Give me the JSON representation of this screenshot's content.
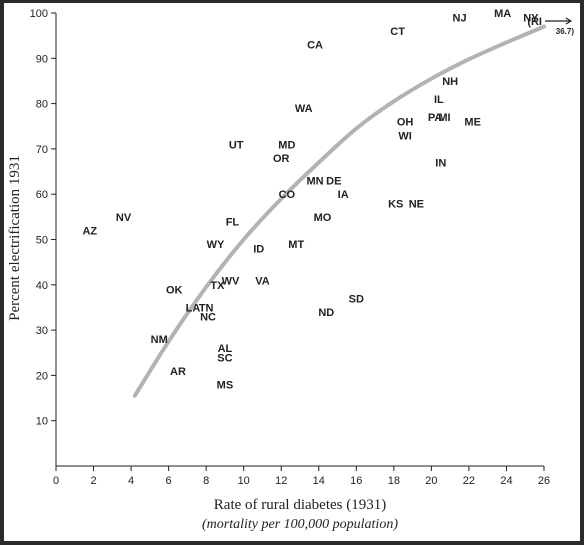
{
  "chart_data": {
    "type": "scatter",
    "title": "",
    "xlabel": "Rate of rural diabetes (1931)",
    "xlabel_sub": "(mortality per 100,000 population)",
    "ylabel": "Percent electrification 1931",
    "xlim": [
      0,
      26
    ],
    "ylim": [
      0,
      100
    ],
    "xticks": [
      0,
      2,
      4,
      6,
      8,
      10,
      12,
      14,
      16,
      18,
      20,
      22,
      24,
      26
    ],
    "yticks": [
      10,
      20,
      30,
      40,
      50,
      60,
      70,
      80,
      90,
      100
    ],
    "grid": false,
    "points": [
      {
        "label": "AZ",
        "x": 1.8,
        "y": 52
      },
      {
        "label": "NV",
        "x": 3.6,
        "y": 55
      },
      {
        "label": "CA",
        "x": 13.8,
        "y": 93
      },
      {
        "label": "CT",
        "x": 18.2,
        "y": 96
      },
      {
        "label": "NJ",
        "x": 21.5,
        "y": 99
      },
      {
        "label": "MA",
        "x": 23.8,
        "y": 100
      },
      {
        "label": "NY",
        "x": 25.3,
        "y": 99
      },
      {
        "label": "NH",
        "x": 21.0,
        "y": 85
      },
      {
        "label": "IL",
        "x": 20.4,
        "y": 81
      },
      {
        "label": "PA",
        "x": 20.2,
        "y": 77
      },
      {
        "label": "MI",
        "x": 20.7,
        "y": 77
      },
      {
        "label": "ME",
        "x": 22.2,
        "y": 76
      },
      {
        "label": "OH",
        "x": 18.6,
        "y": 76
      },
      {
        "label": "WI",
        "x": 18.6,
        "y": 73
      },
      {
        "label": "IN",
        "x": 20.5,
        "y": 67
      },
      {
        "label": "WA",
        "x": 13.2,
        "y": 79
      },
      {
        "label": "UT",
        "x": 9.6,
        "y": 71
      },
      {
        "label": "MD",
        "x": 12.3,
        "y": 71
      },
      {
        "label": "OR",
        "x": 12.0,
        "y": 68
      },
      {
        "label": "MN",
        "x": 13.8,
        "y": 63
      },
      {
        "label": "DE",
        "x": 14.8,
        "y": 63
      },
      {
        "label": "IA",
        "x": 15.3,
        "y": 60
      },
      {
        "label": "CO",
        "x": 12.3,
        "y": 60
      },
      {
        "label": "KS",
        "x": 18.1,
        "y": 58
      },
      {
        "label": "NE",
        "x": 19.2,
        "y": 58
      },
      {
        "label": "MO",
        "x": 14.2,
        "y": 55
      },
      {
        "label": "FL",
        "x": 9.4,
        "y": 54
      },
      {
        "label": "WY",
        "x": 8.5,
        "y": 49
      },
      {
        "label": "ID",
        "x": 10.8,
        "y": 48
      },
      {
        "label": "MT",
        "x": 12.8,
        "y": 49
      },
      {
        "label": "VA",
        "x": 11.0,
        "y": 41
      },
      {
        "label": "WV",
        "x": 9.3,
        "y": 41
      },
      {
        "label": "TX",
        "x": 8.6,
        "y": 40
      },
      {
        "label": "OK",
        "x": 6.3,
        "y": 39
      },
      {
        "label": "LA",
        "x": 7.3,
        "y": 35
      },
      {
        "label": "TN",
        "x": 8.0,
        "y": 35
      },
      {
        "label": "NC",
        "x": 8.1,
        "y": 33
      },
      {
        "label": "SD",
        "x": 16.0,
        "y": 37
      },
      {
        "label": "ND",
        "x": 14.4,
        "y": 34
      },
      {
        "label": "NM",
        "x": 5.5,
        "y": 28
      },
      {
        "label": "AL",
        "x": 9.0,
        "y": 26
      },
      {
        "label": "SC",
        "x": 9.0,
        "y": 24
      },
      {
        "label": "AR",
        "x": 6.5,
        "y": 21
      },
      {
        "label": "MS",
        "x": 9.0,
        "y": 18
      }
    ],
    "outlier_label": "(RI",
    "outlier_value": "36.7)",
    "fit_curve": {
      "x": [
        4.2,
        6,
        8,
        10,
        12,
        14,
        16,
        18,
        20,
        22,
        24,
        26
      ],
      "y": [
        15.5,
        27.5,
        39.5,
        50,
        59,
        67,
        74.5,
        80.5,
        85.5,
        89.8,
        93.5,
        97
      ]
    },
    "colors": {
      "curve": "#b3b3b3",
      "text": "#222222",
      "frame": "#2b2b2b",
      "background": "#ffffff"
    }
  }
}
